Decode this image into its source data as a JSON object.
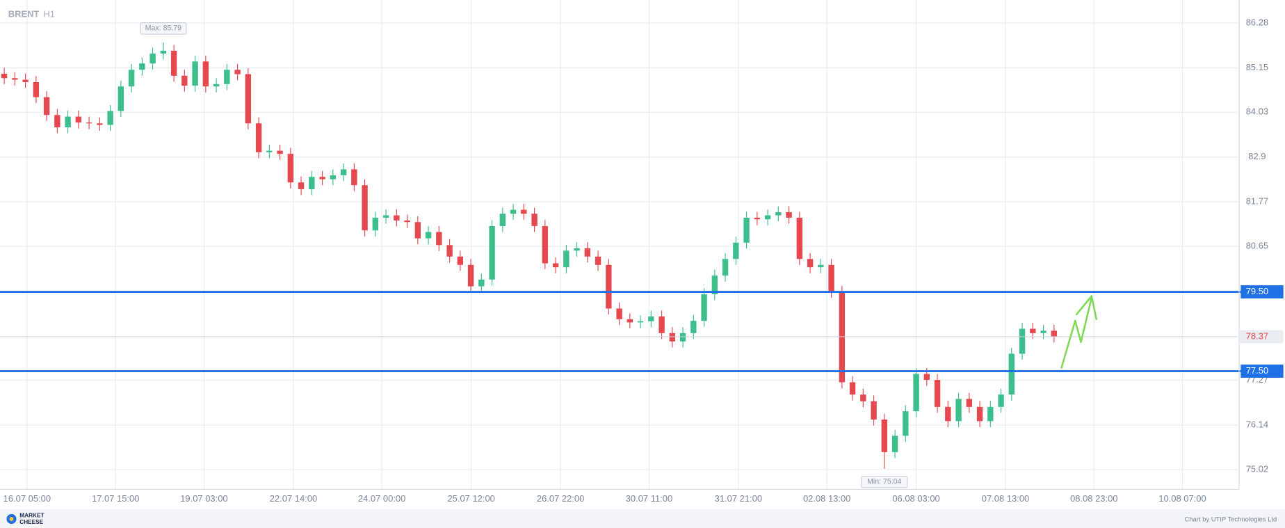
{
  "chart_data": {
    "type": "candlestick",
    "title": "BRENT",
    "timeframe": "H1",
    "logo": [
      "MARKET",
      "CHEESE"
    ],
    "source": "Chart by UTIP Technologies Ltd",
    "up_color": "#3cbf8c",
    "down_color": "#e5484f",
    "grid": true,
    "open": [
      85.0,
      84.89,
      84.85,
      84.79,
      84.41,
      83.96,
      83.65,
      83.92,
      83.77,
      83.75,
      83.71,
      84.06,
      84.68,
      85.1,
      85.26,
      85.51,
      85.58,
      84.95,
      84.7,
      85.31,
      84.68,
      84.74,
      85.1,
      84.99,
      83.75,
      83.02,
      83.06,
      82.98,
      82.26,
      82.09,
      82.4,
      82.34,
      82.44,
      82.59,
      82.19,
      81.05,
      81.37,
      81.43,
      81.3,
      81.26,
      80.85,
      81.01,
      80.68,
      80.39,
      80.18,
      79.64,
      79.81,
      81.16,
      81.47,
      81.57,
      81.47,
      81.16,
      80.22,
      80.12,
      80.54,
      80.6,
      80.39,
      80.18,
      79.08,
      78.81,
      78.73,
      78.76,
      78.88,
      78.46,
      78.25,
      78.46,
      78.77,
      79.44,
      79.91,
      80.33,
      80.74,
      81.37,
      81.33,
      81.43,
      81.51,
      81.37,
      80.33,
      80.12,
      80.18,
      79.5,
      77.22,
      76.91,
      76.74,
      76.28,
      75.46,
      75.87,
      76.49,
      77.43,
      77.28,
      76.6,
      76.24,
      76.8,
      76.6,
      76.24,
      76.6,
      76.91,
      77.94,
      78.57,
      78.46,
      78.52
    ],
    "high": [
      85.15,
      85.04,
      85.0,
      84.94,
      84.56,
      84.11,
      84.07,
      84.07,
      83.92,
      83.9,
      84.21,
      84.83,
      85.25,
      85.41,
      85.66,
      85.79,
      85.73,
      85.1,
      85.46,
      85.46,
      84.89,
      85.25,
      85.25,
      85.14,
      83.9,
      83.21,
      83.21,
      83.13,
      82.41,
      82.55,
      82.55,
      82.59,
      82.74,
      82.74,
      82.34,
      81.52,
      81.58,
      81.58,
      81.45,
      81.41,
      81.16,
      81.16,
      80.83,
      80.54,
      80.33,
      79.96,
      81.31,
      81.62,
      81.72,
      81.72,
      81.62,
      81.31,
      80.37,
      80.69,
      80.75,
      80.75,
      80.54,
      80.33,
      79.23,
      78.96,
      78.91,
      79.03,
      79.03,
      78.61,
      78.61,
      78.92,
      79.59,
      80.06,
      80.48,
      80.89,
      81.52,
      81.52,
      81.58,
      81.66,
      81.66,
      81.52,
      80.48,
      80.33,
      80.33,
      79.65,
      77.37,
      77.06,
      76.89,
      76.43,
      76.02,
      76.64,
      77.58,
      77.58,
      77.43,
      76.75,
      76.95,
      76.95,
      76.75,
      76.75,
      77.06,
      78.09,
      78.72,
      78.72,
      78.67,
      78.67
    ],
    "low": [
      84.74,
      84.7,
      84.64,
      84.26,
      83.81,
      83.5,
      83.5,
      83.62,
      83.6,
      83.56,
      83.56,
      83.91,
      84.53,
      84.95,
      85.11,
      85.36,
      84.8,
      84.55,
      84.55,
      84.53,
      84.53,
      84.59,
      84.84,
      83.6,
      82.87,
      82.87,
      82.83,
      82.11,
      81.94,
      81.94,
      82.19,
      82.19,
      82.29,
      82.04,
      80.9,
      80.9,
      81.22,
      81.15,
      81.11,
      80.7,
      80.7,
      80.53,
      80.24,
      80.03,
      79.49,
      79.49,
      79.66,
      81.01,
      81.32,
      81.32,
      81.01,
      80.07,
      79.97,
      79.97,
      80.39,
      80.24,
      80.03,
      78.93,
      78.66,
      78.58,
      78.58,
      78.61,
      78.31,
      78.1,
      78.1,
      78.31,
      78.62,
      79.29,
      79.76,
      80.18,
      80.59,
      81.18,
      81.18,
      81.28,
      81.22,
      80.18,
      79.97,
      79.97,
      79.35,
      77.07,
      76.76,
      76.59,
      76.13,
      75.04,
      75.31,
      75.72,
      76.34,
      77.13,
      76.45,
      76.09,
      76.09,
      76.45,
      76.09,
      76.09,
      76.45,
      76.76,
      77.79,
      78.31,
      78.31,
      78.22
    ],
    "close": [
      84.89,
      84.85,
      84.79,
      84.41,
      83.96,
      83.65,
      83.92,
      83.77,
      83.75,
      83.71,
      84.06,
      84.68,
      85.1,
      85.26,
      85.51,
      85.58,
      84.95,
      84.7,
      85.31,
      84.68,
      84.74,
      85.1,
      84.99,
      83.75,
      83.02,
      83.06,
      82.98,
      82.26,
      82.09,
      82.4,
      82.34,
      82.44,
      82.59,
      82.19,
      81.05,
      81.37,
      81.43,
      81.3,
      81.26,
      80.85,
      81.01,
      80.68,
      80.39,
      80.18,
      79.64,
      79.81,
      81.16,
      81.47,
      81.57,
      81.47,
      81.16,
      80.22,
      80.12,
      80.54,
      80.6,
      80.39,
      80.18,
      79.08,
      78.81,
      78.73,
      78.76,
      78.88,
      78.46,
      78.25,
      78.46,
      78.77,
      79.44,
      79.91,
      80.33,
      80.74,
      81.37,
      81.33,
      81.43,
      81.51,
      81.37,
      80.33,
      80.12,
      80.18,
      79.5,
      77.22,
      76.91,
      76.74,
      76.28,
      75.46,
      75.87,
      76.49,
      77.43,
      77.28,
      76.6,
      76.24,
      76.8,
      76.6,
      76.24,
      76.6,
      76.91,
      77.94,
      78.57,
      78.46,
      78.52,
      78.37
    ],
    "ylim": [
      74.52,
      86.86
    ],
    "yticks": [
      75.02,
      76.14,
      77.27,
      80.65,
      81.77,
      82.9,
      84.03,
      85.15,
      86.28
    ],
    "xlim": [
      -0.4,
      116.3
    ],
    "xticks": [
      {
        "value": 2.15,
        "label": "16.07 05:00"
      },
      {
        "value": 10.5,
        "label": "17.07 15:00"
      },
      {
        "value": 18.84,
        "label": "19.07 03:00"
      },
      {
        "value": 27.27,
        "label": "22.07 14:00"
      },
      {
        "value": 35.61,
        "label": "24.07 00:00"
      },
      {
        "value": 44.04,
        "label": "25.07 12:00"
      },
      {
        "value": 52.46,
        "label": "26.07 22:00"
      },
      {
        "value": 60.81,
        "label": "30.07 11:00"
      },
      {
        "value": 69.23,
        "label": "31.07 21:00"
      },
      {
        "value": 77.58,
        "label": "02.08 13:00"
      },
      {
        "value": 86.0,
        "label": "06.08 03:00"
      },
      {
        "value": 94.42,
        "label": "07.08 13:00"
      },
      {
        "value": 102.77,
        "label": "08.08 23:00"
      },
      {
        "value": 111.11,
        "label": "10.08 07:00"
      }
    ],
    "levels": [
      {
        "value": 79.5,
        "label": "79.50",
        "color": "#1f6fe5"
      },
      {
        "value": 77.5,
        "label": "77.50",
        "color": "#1f6fe5"
      }
    ],
    "last_price": 78.37,
    "max_marker": {
      "value": 85.79,
      "label": "Max: 85.79"
    },
    "min_marker": {
      "value": 75.04,
      "label": "Min: 75.04"
    }
  }
}
